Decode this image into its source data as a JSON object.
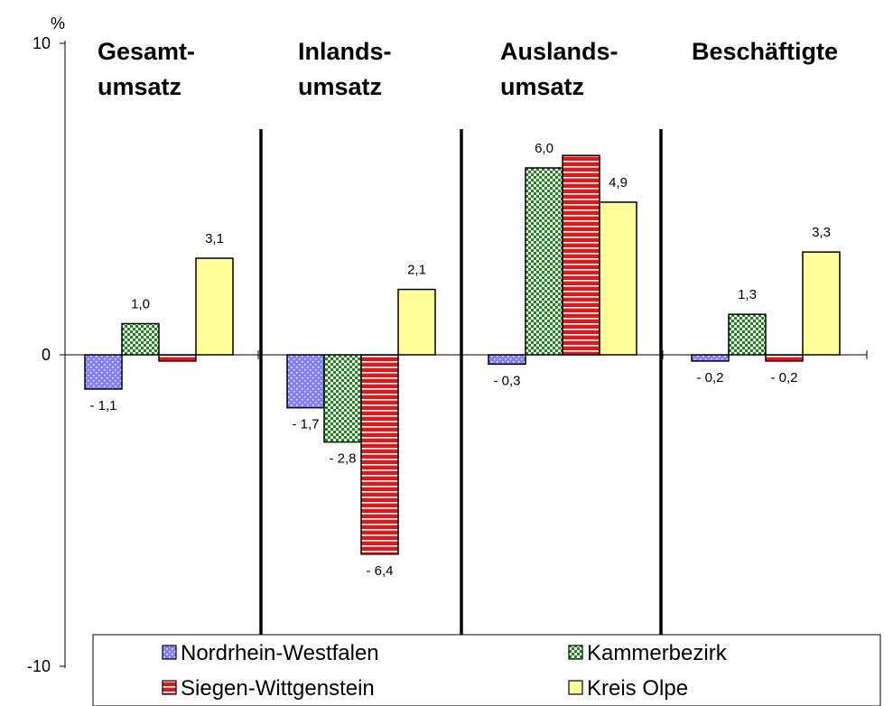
{
  "chart_data": {
    "type": "bar",
    "unit": "%",
    "ylim": [
      -10,
      10
    ],
    "yticks": [
      10,
      0,
      -10
    ],
    "groups": [
      {
        "title_lines": [
          "Gesamt-",
          "umsatz"
        ]
      },
      {
        "title_lines": [
          "Inlands-",
          "umsatz"
        ]
      },
      {
        "title_lines": [
          "Auslands-",
          "umsatz"
        ]
      },
      {
        "title_lines": [
          "Beschäftigte"
        ]
      }
    ],
    "series": [
      {
        "name": "Nordrhein-Westfalen",
        "color": "#8080ff",
        "pattern": "dots",
        "values": [
          -1.1,
          -1.7,
          -0.3,
          -0.2
        ],
        "labels": [
          "- 1,1",
          "- 1,7",
          "- 0,3",
          "- 0,2"
        ]
      },
      {
        "name": "Kammerbezirk",
        "color": "#1a9a1a",
        "pattern": "checker",
        "values": [
          1.0,
          -2.8,
          6.0,
          1.3
        ],
        "labels": [
          "1,0",
          "- 2,8",
          "6,0",
          "1,3"
        ]
      },
      {
        "name": "Siegen-Wittgenstein",
        "color": "#ee1111",
        "pattern": "hstripes",
        "values": [
          -0.2,
          -6.4,
          6.4,
          -0.2
        ],
        "labels": [
          "- 0,2",
          "- 6,4",
          "6,4",
          "- 0,2"
        ]
      },
      {
        "name": "Kreis Olpe",
        "color": "#ffff99",
        "pattern": "solid",
        "values": [
          3.1,
          2.1,
          4.9,
          3.3
        ],
        "labels": [
          "3,1",
          "2,1",
          "4,9",
          "3,3"
        ]
      }
    ],
    "label_visible": [
      [
        true,
        true,
        true,
        true
      ],
      [
        true,
        true,
        true,
        true
      ],
      [
        false,
        true,
        false,
        true
      ],
      [
        true,
        true,
        true,
        true
      ]
    ],
    "grid": false,
    "legend_position": "bottom"
  }
}
